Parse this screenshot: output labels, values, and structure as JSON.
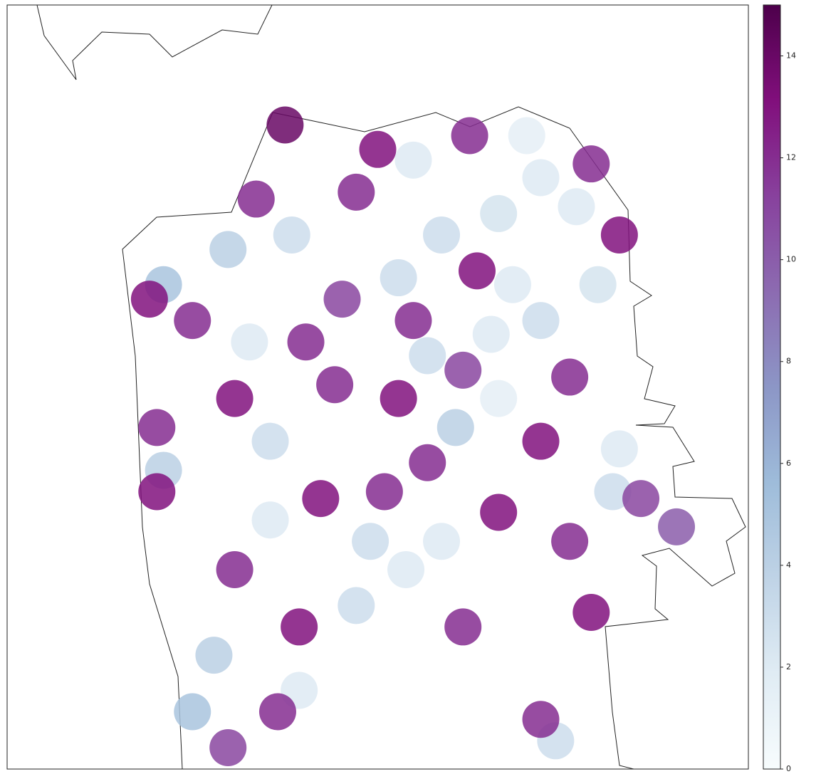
{
  "chart_data": {
    "type": "scatter",
    "xlim": [
      0,
      100
    ],
    "ylim": [
      0,
      100
    ],
    "x": [
      54.8,
      70.1,
      72.0,
      58.6,
      66.3,
      76.8,
      52.8,
      68.2,
      79.7,
      65.3,
      56.7,
      72.0,
      66.3,
      60.5,
      82.6,
      81.7,
      58.6,
      49.0,
      53.8,
      47.1,
      35.5,
      32.7,
      29.8,
      38.4,
      21.1,
      35.5,
      21.1,
      39.4,
      27.9,
      74.0,
      25.0,
      50.0,
      62.4,
      78.8,
      82.6,
      47.1,
      63.4,
      54.8,
      61.5,
      75.9,
      72.0,
      50.9,
      42.3,
      56.7,
      66.3,
      75.9,
      85.5,
      78.8,
      61.5,
      39.4,
      30.7,
      30.7,
      25.0,
      19.2,
      20.2,
      20.2,
      45.2,
      40.3,
      33.6,
      37.5,
      36.5,
      29.8,
      72.0,
      90.3,
      44.2,
      52.8
    ],
    "y": [
      79.7,
      82.9,
      77.4,
      69.9,
      72.7,
      73.6,
      64.3,
      63.4,
      63.4,
      56.9,
      54.1,
      58.7,
      48.5,
      44.7,
      41.9,
      36.3,
      29.8,
      29.8,
      26.1,
      21.4,
      32.6,
      55.9,
      68.0,
      69.9,
      63.4,
      42.9,
      39.1,
      10.3,
      14.9,
      3.7,
      7.5,
      81.1,
      82.9,
      79.2,
      69.9,
      75.5,
      65.2,
      58.7,
      52.2,
      51.3,
      42.9,
      36.3,
      35.4,
      40.1,
      33.6,
      29.8,
      35.4,
      20.5,
      18.6,
      18.6,
      26.1,
      48.5,
      58.7,
      61.5,
      44.7,
      36.3,
      61.5,
      55.9,
      74.6,
      84.3,
      7.5,
      2.8,
      6.5,
      31.7,
      50.3,
      48.5
    ],
    "values": [
      2,
      1.5,
      2,
      3,
      2.5,
      2,
      3,
      2,
      2.5,
      2,
      3,
      3,
      1.5,
      4,
      2,
      3,
      2,
      3,
      2,
      3,
      2,
      2,
      4,
      3,
      5,
      3,
      4,
      2,
      4,
      3,
      5,
      13,
      12,
      12,
      13,
      12,
      13,
      12,
      11,
      12,
      13,
      12,
      13,
      12,
      13,
      12,
      11,
      13,
      12,
      13,
      12,
      13,
      12,
      13,
      12,
      13,
      11,
      12,
      12,
      14,
      12,
      11,
      12,
      10,
      12,
      13
    ],
    "clim": [
      0,
      15
    ],
    "cticks": [
      0,
      2,
      4,
      6,
      8,
      10,
      12,
      14
    ],
    "colormap": [
      "#f7fcfd",
      "#e0ecf4",
      "#bfd3e6",
      "#9ebcda",
      "#8c96c6",
      "#8c6bb1",
      "#88419d",
      "#810f7c",
      "#4d004b"
    ]
  }
}
